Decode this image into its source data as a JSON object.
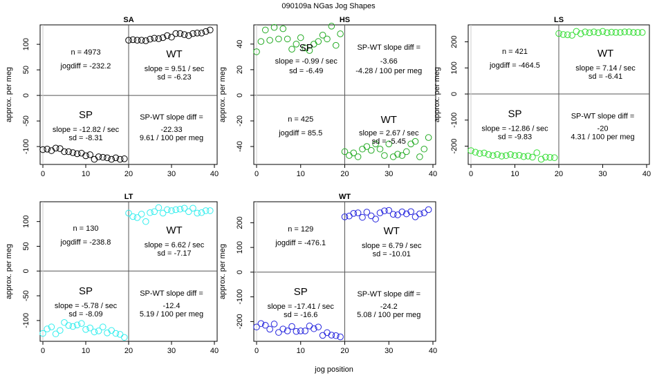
{
  "figure": {
    "title": "090109a   NGas Jog Shapes",
    "xlabel": "jog position",
    "ylabel": "approx. per meg"
  },
  "chart_data": [
    {
      "type": "scatter",
      "title": "SA",
      "xlim": [
        0,
        40
      ],
      "ylim": [
        -135,
        138
      ],
      "xticks": [
        0,
        10,
        20,
        30,
        40
      ],
      "yticks": [
        -100,
        -50,
        0,
        50,
        100
      ],
      "color": "#000000",
      "sp": {
        "x": [
          0,
          1,
          2,
          3,
          4,
          5,
          6,
          7,
          8,
          9,
          10,
          11,
          12,
          13,
          14,
          15,
          16,
          17,
          18,
          19
        ],
        "y": [
          -106,
          -105,
          -108,
          -103,
          -104,
          -110,
          -110,
          -112,
          -114,
          -113,
          -118,
          -116,
          -125,
          -120,
          -121,
          -122,
          -125,
          -122,
          -125,
          -124
        ]
      },
      "wt": {
        "x": [
          20,
          21,
          22,
          23,
          24,
          25,
          26,
          27,
          28,
          29,
          30,
          31,
          32,
          33,
          34,
          35,
          36,
          37,
          38,
          39
        ],
        "y": [
          108,
          109,
          108,
          108,
          107,
          110,
          112,
          111,
          113,
          117,
          114,
          121,
          121,
          119,
          117,
          121,
          122,
          122,
          125,
          128
        ]
      },
      "n_text": "n = 4973",
      "jogdiff_text": "jogdiff = -232.2",
      "wt_label": "WT",
      "wt_slope_text": "slope = 9.51 / sec",
      "wt_sd_text": "sd = -6.23",
      "sp_label": "SP",
      "sp_slope_text": "slope = -12.82 / sec",
      "sp_sd_text": "sd = -8.31",
      "diff_title": "SP-WT slope diff =",
      "diff_value": "-22.33",
      "diff_per_meg": "9.61 / 100 per meg"
    },
    {
      "type": "scatter",
      "title": "HS",
      "xlim": [
        0,
        40
      ],
      "ylim": [
        -54,
        55
      ],
      "xticks": [
        0,
        10,
        20,
        30,
        40
      ],
      "yticks": [
        -40,
        -20,
        0,
        20,
        40
      ],
      "color": "#22aa22",
      "sp": {
        "x": [
          0,
          1,
          2,
          3,
          4,
          5,
          6,
          7,
          8,
          9,
          10,
          11,
          12,
          13,
          14,
          15,
          16,
          17,
          18,
          19
        ],
        "y": [
          34,
          42,
          51,
          43,
          53,
          44,
          52,
          44,
          36,
          40,
          45,
          37,
          35,
          40,
          42,
          47,
          44,
          54,
          39,
          48
        ]
      },
      "wt": {
        "x": [
          20,
          21,
          22,
          23,
          24,
          25,
          26,
          27,
          28,
          29,
          30,
          31,
          32,
          33,
          34,
          35,
          36,
          37,
          38,
          39
        ],
        "y": [
          -44,
          -47,
          -45,
          -48,
          -42,
          -40,
          -43,
          -38,
          -42,
          -47,
          -38,
          -48,
          -46,
          -47,
          -44,
          -38,
          -36,
          -48,
          -42,
          -33
        ]
      },
      "n_text": "n = 425",
      "jogdiff_text": "jogdiff = 85.5",
      "wt_label": "WT",
      "wt_slope_text": "slope = 2.67 / sec",
      "wt_sd_text": "sd = -5.45",
      "sp_label": "SP",
      "sp_slope_text": "slope = -0.99 / sec",
      "sp_sd_text": "sd = -6.49",
      "diff_title": "SP-WT slope diff =",
      "diff_value": "-3.66",
      "diff_per_meg": "-4.28 / 100 per meg",
      "swap_layout": true
    },
    {
      "type": "scatter",
      "title": "LS",
      "xlim": [
        0,
        40
      ],
      "ylim": [
        -270,
        265
      ],
      "xticks": [
        0,
        10,
        20,
        30,
        40
      ],
      "yticks": [
        -200,
        -100,
        0,
        100,
        200
      ],
      "color": "#33dd33",
      "sp": {
        "x": [
          0,
          1,
          2,
          3,
          4,
          5,
          6,
          7,
          8,
          9,
          10,
          11,
          12,
          13,
          14,
          15,
          16,
          17,
          18,
          19
        ],
        "y": [
          -217,
          -223,
          -228,
          -226,
          -232,
          -236,
          -232,
          -238,
          -236,
          -232,
          -236,
          -235,
          -240,
          -238,
          -242,
          -225,
          -250,
          -242,
          -243,
          -244
        ]
      },
      "wt": {
        "x": [
          20,
          21,
          22,
          23,
          24,
          25,
          26,
          27,
          28,
          29,
          30,
          31,
          32,
          33,
          34,
          35,
          36,
          37,
          38,
          39
        ],
        "y": [
          232,
          228,
          227,
          225,
          240,
          231,
          238,
          235,
          238,
          235,
          240,
          235,
          237,
          236,
          236,
          238,
          238,
          236,
          236,
          236
        ]
      },
      "n_text": "n = 421",
      "jogdiff_text": "jogdiff = -464.5",
      "wt_label": "WT",
      "wt_slope_text": "slope = 7.14 / sec",
      "wt_sd_text": "sd = -6.41",
      "sp_label": "SP",
      "sp_slope_text": "slope = -12.86 / sec",
      "sp_sd_text": "sd = -9.83",
      "diff_title": "SP-WT slope diff =",
      "diff_value": "-20",
      "diff_per_meg": "4.31 / 100 per meg"
    },
    {
      "type": "scatter",
      "title": "LT",
      "xlim": [
        0,
        40
      ],
      "ylim": [
        -142,
        140
      ],
      "xticks": [
        0,
        10,
        20,
        30,
        40
      ],
      "yticks": [
        -100,
        -50,
        0,
        50,
        100
      ],
      "color": "#33eeee",
      "sp": {
        "x": [
          0,
          1,
          2,
          3,
          4,
          5,
          6,
          7,
          8,
          9,
          10,
          11,
          12,
          13,
          14,
          15,
          16,
          17,
          18,
          19
        ],
        "y": [
          -126,
          -117,
          -113,
          -127,
          -120,
          -104,
          -110,
          -112,
          -109,
          -106,
          -118,
          -115,
          -123,
          -121,
          -113,
          -125,
          -120,
          -126,
          -128,
          -134
        ]
      },
      "wt": {
        "x": [
          20,
          21,
          22,
          23,
          24,
          25,
          26,
          27,
          28,
          29,
          30,
          31,
          32,
          33,
          34,
          35,
          36,
          37,
          38,
          39
        ],
        "y": [
          117,
          110,
          108,
          115,
          100,
          118,
          120,
          128,
          117,
          124,
          122,
          124,
          125,
          127,
          120,
          127,
          117,
          118,
          122,
          122
        ]
      },
      "n_text": "n = 130",
      "jogdiff_text": "jogdiff = -238.8",
      "wt_label": "WT",
      "wt_slope_text": "slope = 6.62 / sec",
      "wt_sd_text": "sd = -7.17",
      "sp_label": "SP",
      "sp_slope_text": "slope = -5.78 / sec",
      "sp_sd_text": "sd = -8.09",
      "diff_title": "SP-WT slope diff =",
      "diff_value": "-12.4",
      "diff_per_meg": "5.19 / 100 per meg"
    },
    {
      "type": "scatter",
      "title": "WT",
      "xlim": [
        0,
        40
      ],
      "ylim": [
        -280,
        285
      ],
      "xticks": [
        0,
        10,
        20,
        30,
        40
      ],
      "yticks": [
        -200,
        -100,
        0,
        100,
        200
      ],
      "color": "#2222dd",
      "sp": {
        "x": [
          0,
          1,
          2,
          3,
          4,
          5,
          6,
          7,
          8,
          9,
          10,
          11,
          12,
          13,
          14,
          15,
          16,
          17,
          18,
          19
        ],
        "y": [
          -222,
          -208,
          -215,
          -231,
          -210,
          -244,
          -230,
          -238,
          -220,
          -240,
          -238,
          -238,
          -218,
          -229,
          -222,
          -256,
          -245,
          -255,
          -257,
          -262
        ]
      },
      "wt": {
        "x": [
          20,
          21,
          22,
          23,
          24,
          25,
          26,
          27,
          28,
          29,
          30,
          31,
          32,
          33,
          34,
          35,
          36,
          37,
          38,
          39
        ],
        "y": [
          224,
          227,
          238,
          240,
          222,
          243,
          228,
          215,
          240,
          248,
          250,
          234,
          232,
          244,
          236,
          245,
          224,
          236,
          240,
          253
        ]
      },
      "n_text": "n = 129",
      "jogdiff_text": "jogdiff = -476.1",
      "wt_label": "WT",
      "wt_slope_text": "slope = 6.79 / sec",
      "wt_sd_text": "sd = -10.01",
      "sp_label": "SP",
      "sp_slope_text": "slope = -17.41 / sec",
      "sp_sd_text": "sd = -16.6",
      "diff_title": "SP-WT slope diff =",
      "diff_value": "-24.2",
      "diff_per_meg": "5.08 / 100 per meg"
    }
  ]
}
